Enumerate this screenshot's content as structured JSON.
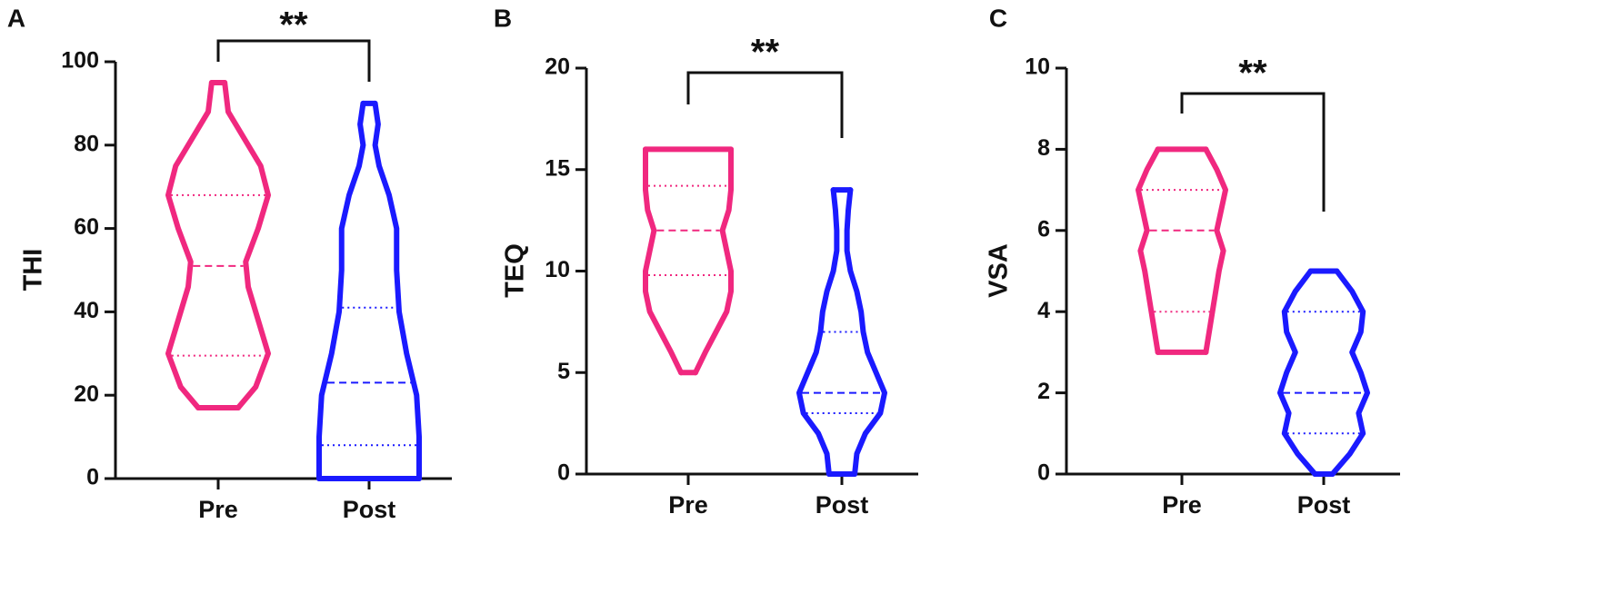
{
  "chart_data": [
    {
      "type": "violin",
      "panel_label": "A",
      "ylabel": "THI",
      "annotation": "**",
      "categories": [
        "Pre",
        "Post"
      ],
      "ylim": [
        0,
        100
      ],
      "yticks": [
        0,
        20,
        40,
        60,
        80,
        100
      ],
      "groups": [
        {
          "color": "#f0287f",
          "min": 17,
          "q1": 29.5,
          "median": 51,
          "q3": 68,
          "max": 95,
          "density_y": [
            17,
            22,
            30,
            38,
            46,
            52,
            60,
            68,
            75,
            82,
            88,
            95
          ],
          "density": [
            0.4,
            0.75,
            1.0,
            0.8,
            0.6,
            0.55,
            0.8,
            1.0,
            0.85,
            0.5,
            0.2,
            0.13
          ]
        },
        {
          "color": "#1a1aff",
          "min": 0,
          "q1": 8,
          "median": 23,
          "q3": 41,
          "max": 90,
          "density_y": [
            0,
            10,
            20,
            30,
            40,
            50,
            60,
            68,
            75,
            80,
            85,
            90
          ],
          "density": [
            1.0,
            1.0,
            0.95,
            0.75,
            0.6,
            0.55,
            0.55,
            0.4,
            0.2,
            0.12,
            0.18,
            0.12
          ]
        }
      ]
    },
    {
      "type": "violin",
      "panel_label": "B",
      "ylabel": "TEQ",
      "annotation": "**",
      "categories": [
        "Pre",
        "Post"
      ],
      "ylim": [
        0,
        20
      ],
      "yticks": [
        0,
        5,
        10,
        15,
        20
      ],
      "groups": [
        {
          "color": "#f0287f",
          "min": 5,
          "q1": 9.8,
          "median": 12,
          "q3": 14.2,
          "max": 16,
          "density_y": [
            5,
            6,
            7,
            8,
            9,
            10,
            11,
            12,
            13,
            14,
            15,
            16
          ],
          "density": [
            0.17,
            0.4,
            0.65,
            0.9,
            1.0,
            1.0,
            0.9,
            0.8,
            0.95,
            1.0,
            1.0,
            1.0
          ]
        },
        {
          "color": "#1a1aff",
          "min": 0,
          "q1": 3,
          "median": 4,
          "q3": 7,
          "max": 14,
          "density_y": [
            0,
            1,
            2,
            3,
            4,
            5,
            6,
            7,
            8,
            9,
            10,
            11,
            12,
            13,
            14
          ],
          "density": [
            0.3,
            0.35,
            0.55,
            0.9,
            1.0,
            0.8,
            0.6,
            0.5,
            0.45,
            0.35,
            0.2,
            0.12,
            0.12,
            0.15,
            0.2
          ]
        }
      ]
    },
    {
      "type": "violin",
      "panel_label": "C",
      "ylabel": "VSA",
      "annotation": "**",
      "categories": [
        "Pre",
        "Post"
      ],
      "ylim": [
        0,
        10
      ],
      "yticks": [
        0,
        2,
        4,
        6,
        8,
        10
      ],
      "groups": [
        {
          "color": "#f0287f",
          "min": 3,
          "q1": 4,
          "median": 6,
          "q3": 7,
          "max": 8,
          "density_y": [
            3,
            4,
            5,
            5.5,
            6,
            6.5,
            7,
            7.5,
            8
          ],
          "density": [
            0.55,
            0.7,
            0.85,
            0.95,
            0.8,
            0.9,
            1.0,
            0.8,
            0.55
          ]
        },
        {
          "color": "#1a1aff",
          "min": 0,
          "q1": 1,
          "median": 2,
          "q3": 4,
          "max": 5,
          "density_y": [
            0,
            0.5,
            1,
            1.5,
            2,
            2.5,
            3,
            3.5,
            4,
            4.5,
            5
          ],
          "density": [
            0.2,
            0.6,
            0.9,
            0.8,
            1.0,
            0.85,
            0.65,
            0.85,
            0.9,
            0.65,
            0.3
          ]
        }
      ]
    }
  ]
}
